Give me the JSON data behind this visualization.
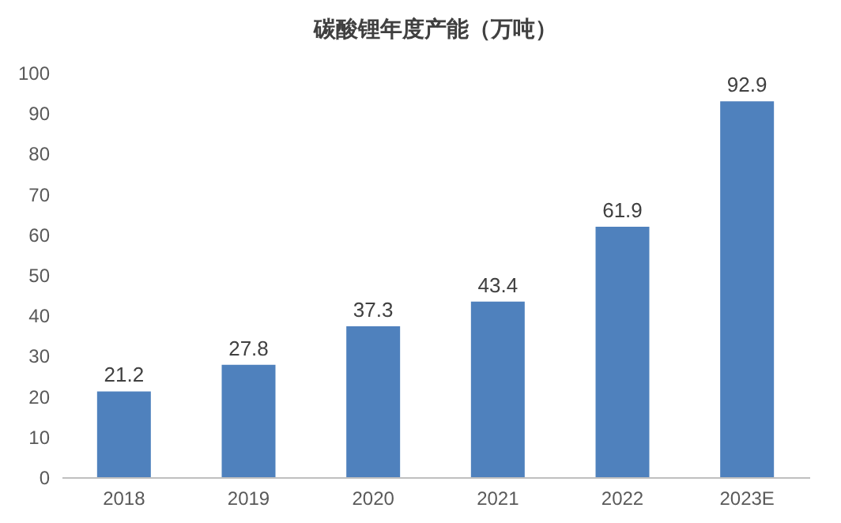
{
  "chart_data": {
    "type": "bar",
    "title": "碳酸锂年度产能（万吨）",
    "categories": [
      "2018",
      "2019",
      "2020",
      "2021",
      "2022",
      "2023E"
    ],
    "values": [
      21.2,
      27.8,
      37.3,
      43.4,
      61.9,
      92.9
    ],
    "color": "#4f81bd",
    "ylim": [
      0,
      100
    ],
    "yticks": [
      0,
      10,
      20,
      30,
      40,
      50,
      60,
      70,
      80,
      90,
      100
    ],
    "grid": false,
    "data_labels": true
  }
}
